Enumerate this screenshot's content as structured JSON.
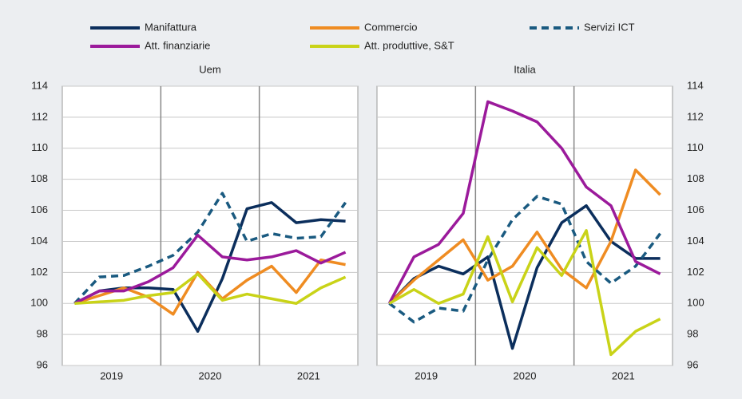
{
  "chart_data": [
    {
      "type": "line",
      "title": "Uem",
      "xlabels": [
        "2019",
        "2020",
        "2021"
      ],
      "ylim": [
        96,
        114
      ],
      "yticks": [
        96,
        98,
        100,
        102,
        104,
        106,
        108,
        110,
        112,
        114
      ],
      "grid": true,
      "yaxis_side": "left",
      "series": [
        {
          "name": "Manifattura",
          "color": "#0b2e5c",
          "dash": false,
          "values": [
            100,
            100.8,
            101.0,
            101.0,
            100.9,
            98.2,
            101.6,
            106.1,
            106.5,
            105.2,
            105.4,
            105.3
          ]
        },
        {
          "name": "Commercio",
          "color": "#ef8c22",
          "dash": false,
          "values": [
            100,
            100.5,
            101.0,
            100.4,
            99.3,
            102.0,
            100.3,
            101.5,
            102.4,
            100.7,
            102.8,
            102.5
          ]
        },
        {
          "name": "Servizi ICT",
          "color": "#1a5a80",
          "dash": true,
          "values": [
            100,
            101.7,
            101.8,
            102.4,
            103.1,
            104.6,
            107.1,
            104.0,
            104.5,
            104.2,
            104.3,
            106.5
          ]
        },
        {
          "name": "Att. finanziarie",
          "color": "#9b1a9b",
          "dash": false,
          "values": [
            100,
            100.8,
            100.8,
            101.4,
            102.3,
            104.4,
            103.0,
            102.8,
            103.0,
            103.4,
            102.6,
            103.3
          ]
        },
        {
          "name": "Att. produttive, S&T",
          "color": "#c9d318",
          "dash": false,
          "values": [
            100,
            100.1,
            100.2,
            100.5,
            100.7,
            101.9,
            100.2,
            100.6,
            100.3,
            100.0,
            101.0,
            101.7
          ]
        }
      ]
    },
    {
      "type": "line",
      "title": "Italia",
      "xlabels": [
        "2019",
        "2020",
        "2021"
      ],
      "ylim": [
        96,
        114
      ],
      "yticks": [
        96,
        98,
        100,
        102,
        104,
        106,
        108,
        110,
        112,
        114
      ],
      "grid": true,
      "yaxis_side": "right",
      "series": [
        {
          "color": "#0b2e5c",
          "dash": false,
          "values": [
            100,
            101.6,
            102.4,
            101.9,
            103.0,
            97.1,
            102.3,
            105.2,
            106.3,
            104.0,
            102.9,
            102.9
          ]
        },
        {
          "color": "#ef8c22",
          "dash": false,
          "values": [
            100,
            101.5,
            102.8,
            104.1,
            101.5,
            102.4,
            104.6,
            102.2,
            101.0,
            104.0,
            108.6,
            107.0
          ]
        },
        {
          "color": "#1a5a80",
          "dash": true,
          "values": [
            100,
            98.8,
            99.7,
            99.5,
            102.8,
            105.4,
            106.9,
            106.4,
            102.7,
            101.3,
            102.4,
            104.5
          ]
        },
        {
          "color": "#9b1a9b",
          "dash": false,
          "values": [
            100,
            103.0,
            103.8,
            105.8,
            113.0,
            112.4,
            111.7,
            110.0,
            107.5,
            106.3,
            102.7,
            101.9
          ]
        },
        {
          "color": "#c9d318",
          "dash": false,
          "values": [
            100,
            100.9,
            100.0,
            100.6,
            104.3,
            100.1,
            103.6,
            101.8,
            104.7,
            96.7,
            98.2,
            99.0
          ]
        }
      ]
    }
  ]
}
